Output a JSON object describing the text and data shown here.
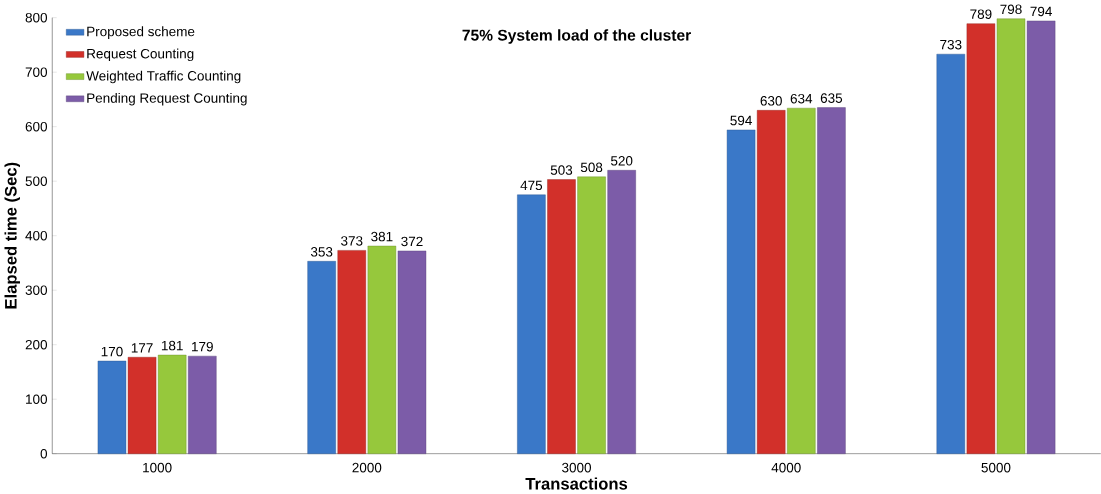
{
  "chart_data": {
    "type": "bar",
    "title": "75% System load of the cluster",
    "xlabel": "Transactions",
    "ylabel": "Elapsed time (Sec)",
    "categories": [
      "1000",
      "2000",
      "3000",
      "4000",
      "5000"
    ],
    "series": [
      {
        "name": "Proposed scheme",
        "color": "#3a78c8",
        "values": [
          170,
          353,
          475,
          594,
          733
        ]
      },
      {
        "name": "Request Counting",
        "color": "#d2302a",
        "values": [
          177,
          373,
          503,
          630,
          789
        ]
      },
      {
        "name": "Weighted Traffic Counting",
        "color": "#96c83c",
        "values": [
          181,
          381,
          508,
          634,
          798
        ]
      },
      {
        "name": "Pending Request Counting",
        "color": "#7c5ca8",
        "values": [
          179,
          372,
          520,
          635,
          794
        ]
      }
    ],
    "ylim": [
      0,
      800
    ],
    "yticks": [
      0,
      100,
      200,
      300,
      400,
      500,
      600,
      700,
      800
    ],
    "data_labels": true,
    "grid": false,
    "legend": "top left"
  }
}
